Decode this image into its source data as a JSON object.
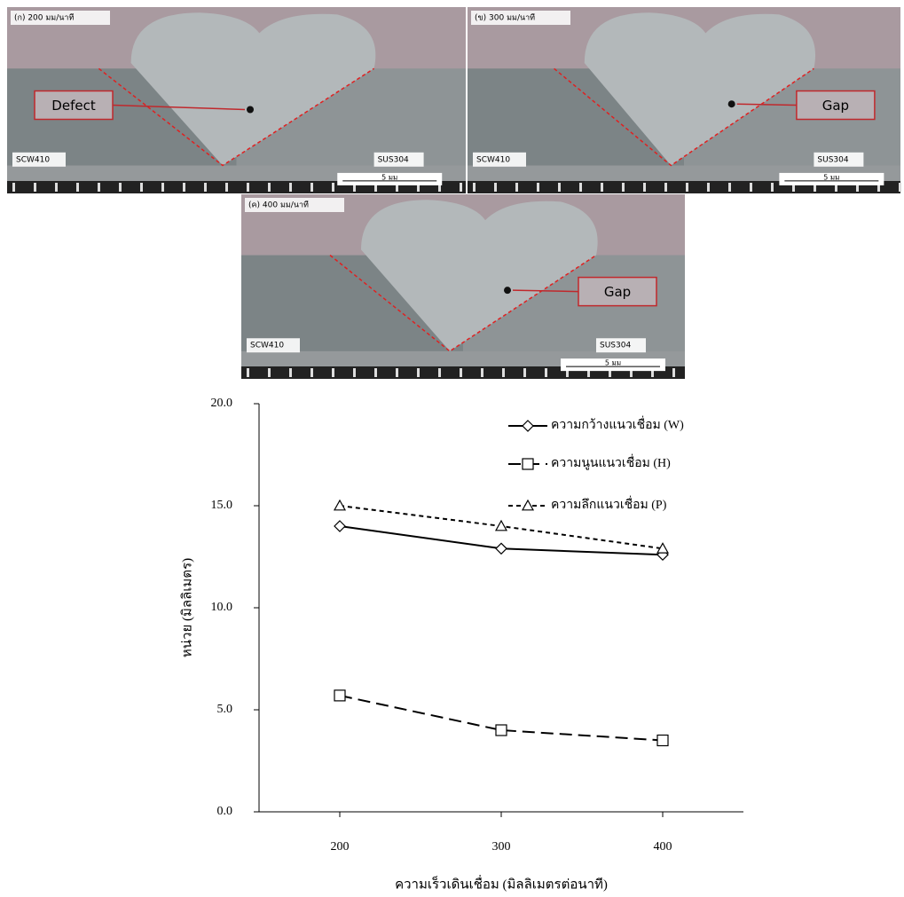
{
  "photos": [
    {
      "caption": "(ก) 200 มม/นาที",
      "callout": "Defect",
      "left_metal": "SCW410",
      "right_metal": "SUS304",
      "scale": "5 มม"
    },
    {
      "caption": "(ข) 300 มม/นาที",
      "callout": "Gap",
      "left_metal": "SCW410",
      "right_metal": "SUS304",
      "scale": "5 มม"
    },
    {
      "caption": "(ค) 400 มม/นาที",
      "callout": "Gap",
      "left_metal": "SCW410",
      "right_metal": "SUS304",
      "scale": "5 มม"
    }
  ],
  "chart_data": {
    "type": "line",
    "x_label": "ความเร็วเดินเชื่อม (มิลลิเมตรต่อนาที)",
    "y_label": "หน่วย (มิลลิเมตร)",
    "x": [
      200,
      300,
      400
    ],
    "xlim": [
      150,
      450
    ],
    "xticks": [
      200,
      300,
      400
    ],
    "ylim": [
      0,
      20
    ],
    "yticks": [
      {
        "value": 0,
        "label": "0.0"
      },
      {
        "value": 5,
        "label": "5.0"
      },
      {
        "value": 10,
        "label": "10.0"
      },
      {
        "value": 15,
        "label": "15.0"
      },
      {
        "value": 20,
        "label": "20.0"
      }
    ],
    "legend": "upper right",
    "series": [
      {
        "name": "ความกว้างแนวเชื่อม (W)",
        "color": "#000000",
        "marker": "diamond",
        "dash": "solid",
        "values": [
          14.0,
          12.9,
          12.6
        ]
      },
      {
        "name": "ความนูนแนวเชื่อม (H)",
        "color": "#000000",
        "marker": "square",
        "dash": "long",
        "values": [
          5.7,
          4.0,
          3.5
        ]
      },
      {
        "name": "ความลึกแนวเชื่อม (P)",
        "color": "#000000",
        "marker": "triangle",
        "dash": "short",
        "values": [
          15.0,
          14.0,
          12.9
        ]
      }
    ]
  }
}
